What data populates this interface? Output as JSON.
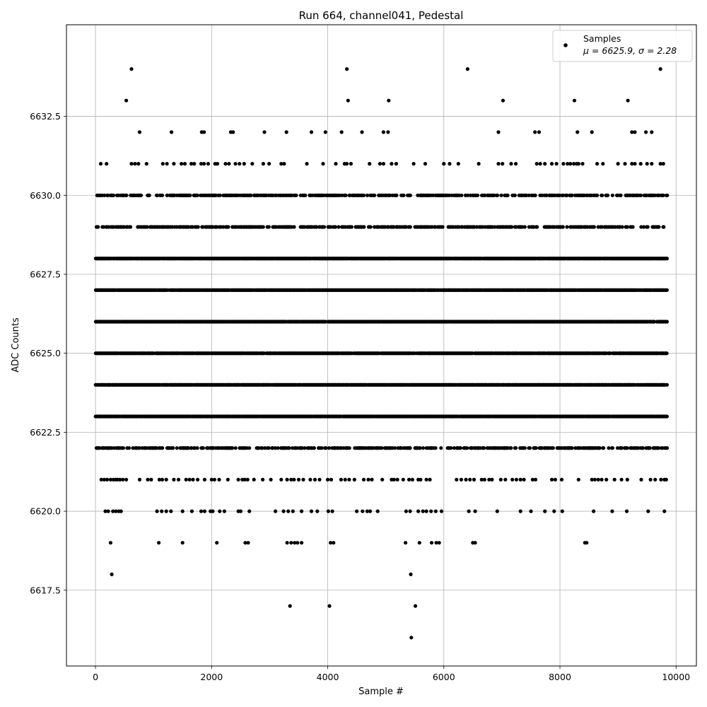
{
  "chart_data": {
    "type": "scatter",
    "title": "Run 664, channel041, Pedestal",
    "xlabel": "Sample #",
    "ylabel": "ADC Counts",
    "xlim": [
      -500,
      10350
    ],
    "ylim": [
      6615.1,
      6635.4
    ],
    "xticks": [
      0,
      2000,
      4000,
      6000,
      8000,
      10000
    ],
    "xtick_labels": [
      "0",
      "2000",
      "4000",
      "6000",
      "8000",
      "10000"
    ],
    "yticks": [
      6617.5,
      6620.0,
      6622.5,
      6625.0,
      6627.5,
      6630.0,
      6632.5
    ],
    "ytick_labels": [
      "6617.5",
      "6620.0",
      "6622.5",
      "6625.0",
      "6627.5",
      "6630.0",
      "6632.5"
    ],
    "grid": true,
    "legend_position": "top-right",
    "marker_color": "#000000",
    "series": [
      {
        "name": "Samples",
        "stats_label": "μ = 6625.9, σ = 2.28",
        "x_range": [
          0,
          9850
        ],
        "dense_levels": [
          6623,
          6624,
          6625,
          6626,
          6627,
          6628
        ],
        "medium_levels": [
          6622,
          6629,
          6630
        ],
        "sparse_points": [
          {
            "y": 6621,
            "x": [
              100,
              150,
              200,
              260,
              310,
              350,
              380,
              420,
              470,
              530,
              760,
              900,
              960,
              1100,
              1150,
              1220,
              1350,
              1430,
              1560,
              1620,
              1680,
              1760,
              1880,
              2000,
              2050,
              2130,
              2280,
              2460,
              2530,
              2570,
              2620,
              2730,
              2880,
              3020,
              3200,
              3300,
              3370,
              3420,
              3500,
              3580,
              3700,
              3780,
              3860,
              4000,
              4060,
              4230,
              4300,
              4370,
              4460,
              4620,
              4700,
              4760,
              4940,
              5100,
              5140,
              5200,
              5300,
              5400,
              5460,
              5560,
              5600,
              5700,
              5760,
              6220,
              6300,
              6380,
              6450,
              6520,
              6650,
              6700,
              6780,
              6830,
              6980,
              7060,
              7180,
              7250,
              7320,
              7380,
              7530,
              7580,
              7860,
              7920,
              8030,
              8320,
              8550,
              8600,
              8660,
              8720,
              8800,
              8940,
              9060,
              9160,
              9400,
              9560,
              9640,
              9740,
              9800,
              9830
            ]
          },
          {
            "y": 6620,
            "x": [
              170,
              220,
              300,
              350,
              400,
              440,
              1060,
              1140,
              1220,
              1300,
              1500,
              1660,
              1820,
              1880,
              1980,
              2020,
              2140,
              2220,
              2460,
              2500,
              2650,
              3100,
              3240,
              3320,
              3400,
              3550,
              3720,
              3820,
              4010,
              4080,
              4500,
              4600,
              4680,
              4730,
              4860,
              5350,
              5420,
              5560,
              5640,
              5700,
              5780,
              5860,
              5960,
              6430,
              6540,
              6920,
              7320,
              7500,
              7740,
              7900,
              8040,
              8580,
              8900,
              9150,
              9520,
              9800
            ]
          },
          {
            "y": 6619,
            "x": [
              260,
              1090,
              1500,
              2090,
              2580,
              2630,
              3300,
              3370,
              3430,
              3480,
              3550,
              4050,
              4100,
              5340,
              5580,
              5790,
              5870,
              5920,
              6500,
              6540,
              8430,
              8460
            ]
          },
          {
            "y": 6618,
            "x": [
              280,
              5430
            ]
          },
          {
            "y": 6617,
            "x": [
              3350,
              4030,
              5510
            ]
          },
          {
            "y": 6616,
            "x": [
              5440
            ]
          },
          {
            "y": 6631,
            "x": [
              90,
              190,
              620,
              680,
              740,
              880,
              1160,
              1230,
              1350,
              1480,
              1540,
              1650,
              1700,
              1820,
              1870,
              1940,
              2060,
              2100,
              2240,
              2300,
              2410,
              2480,
              2560,
              2700,
              2890,
              2990,
              3200,
              3250,
              3640,
              3920,
              4140,
              4290,
              4330,
              4400,
              4720,
              4900,
              4960,
              5100,
              5180,
              5480,
              5680,
              6000,
              6100,
              6250,
              6600,
              6940,
              7010,
              7160,
              7240,
              7600,
              7660,
              7740,
              7860,
              7940,
              8060,
              8130,
              8180,
              8240,
              8290,
              8320,
              8390,
              8640,
              8740,
              9000,
              9120,
              9240,
              9290,
              9390,
              9500,
              9580,
              9730,
              9780
            ]
          },
          {
            "y": 6632,
            "x": [
              760,
              1310,
              1830,
              1870,
              2330,
              2370,
              2910,
              3290,
              3720,
              3960,
              4240,
              4590,
              4960,
              5040,
              6940,
              7570,
              7640,
              8300,
              8550,
              9240,
              9290,
              9480,
              9580
            ]
          },
          {
            "y": 6633,
            "x": [
              530,
              4350,
              5050,
              7020,
              8250,
              9170
            ]
          },
          {
            "y": 6634,
            "x": [
              620,
              4330,
              6410,
              9730
            ]
          }
        ]
      }
    ]
  }
}
